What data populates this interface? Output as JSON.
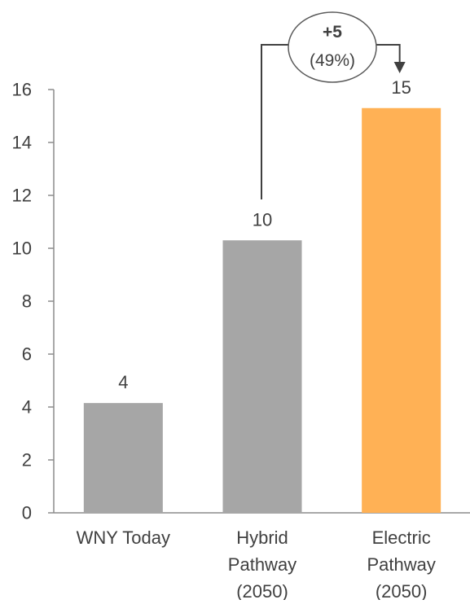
{
  "chart_data": {
    "type": "bar",
    "title": "",
    "xlabel": "",
    "ylabel": "",
    "ylim": [
      0,
      16
    ],
    "yticks": [
      0,
      2,
      4,
      6,
      8,
      10,
      12,
      14,
      16
    ],
    "grid": false,
    "legend": "none",
    "categories": [
      [
        "WNY Today"
      ],
      [
        "Hybrid",
        "Pathway",
        "(2050)"
      ],
      [
        "Electric",
        "Pathway",
        "(2050)"
      ]
    ],
    "values": [
      4.15,
      10.3,
      15.3
    ],
    "data_labels": [
      "4",
      "10",
      "15"
    ],
    "colors": [
      "#a6a6a6",
      "#a6a6a6",
      "#ffb155"
    ],
    "annotation": {
      "from_category_index": 1,
      "to_category_index": 2,
      "delta_label": "+5",
      "percent_label": "(49%)",
      "line_color": "#404040"
    }
  }
}
